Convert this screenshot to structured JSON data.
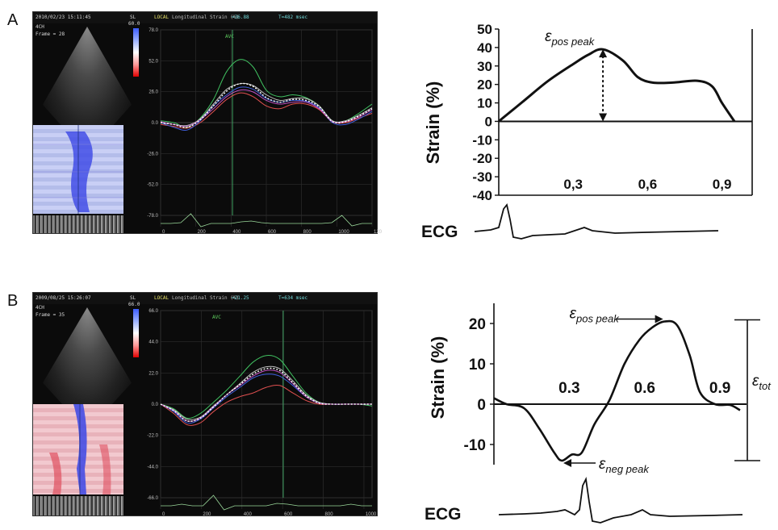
{
  "panels": [
    {
      "letter": "A",
      "echo": {
        "timestamp": "2010/02/23 15:11:45",
        "view": "4CH",
        "frame": "Frame = 28",
        "scale_label": "SL",
        "scale_value": "60.0",
        "header_local": "LOCAL",
        "header_title": "Longitudinal Strain (%)",
        "header_value": "=36.88",
        "header_time": "T=482 msec",
        "marker": "AVC",
        "yticks": [
          "78.0",
          "52.0",
          "26.0",
          "0.0",
          "-26.0",
          "-52.0",
          "-78.0"
        ],
        "xticks": [
          "0",
          "200",
          "400",
          "600",
          "800",
          "1000",
          "120"
        ]
      },
      "schematic": {
        "ylabel": "Strain (%)",
        "yticks": [
          "50",
          "40",
          "30",
          "20",
          "10",
          "0",
          "-10",
          "-20",
          "-30",
          "-40"
        ],
        "xticks": [
          "0,3",
          "0,6",
          "0,9"
        ],
        "peak_label": "pos peak",
        "ecg_label": "ECG"
      }
    },
    {
      "letter": "B",
      "echo": {
        "timestamp": "2009/08/25 15:26:07",
        "view": "4CH",
        "frame": "Frame = 35",
        "scale_label": "SL",
        "scale_value": "66.0",
        "header_local": "LOCAL",
        "header_title": "Longitudinal Strain (%)",
        "header_value": "=21.25",
        "header_time": "T=634 msec",
        "marker": "AVC",
        "yticks": [
          "66.0",
          "44.0",
          "22.0",
          "0.0",
          "-22.0",
          "-44.0",
          "-66.0"
        ],
        "xticks": [
          "0",
          "200",
          "400",
          "600",
          "800",
          "1000"
        ]
      },
      "schematic": {
        "ylabel": "Strain (%)",
        "yticks": [
          "20",
          "10",
          "0",
          "-10"
        ],
        "xticks": [
          "0.3",
          "0.6",
          "0.9"
        ],
        "pos_label": "pos peak",
        "neg_label": "neg peak",
        "tot_label": "tot",
        "ecg_label": "ECG"
      }
    }
  ],
  "chart_data": [
    {
      "type": "line",
      "panel": "A",
      "ylabel": "Strain (%)",
      "xlabel": "",
      "ylim": [
        -40,
        50
      ],
      "xticks": [
        0.3,
        0.6,
        0.9
      ],
      "series": [
        {
          "x": [
            0.0,
            0.1,
            0.2,
            0.3,
            0.36,
            0.42,
            0.5,
            0.56,
            0.62,
            0.7,
            0.8,
            0.86,
            0.9,
            0.95
          ],
          "y": [
            0,
            11,
            22,
            31,
            36,
            39,
            33,
            24,
            21,
            21,
            22,
            19,
            10,
            0
          ]
        }
      ],
      "annotations": [
        {
          "text": "pos peak",
          "x": 0.42,
          "y": 39
        }
      ]
    },
    {
      "type": "line",
      "panel": "B",
      "ylabel": "Strain (%)",
      "xlabel": "",
      "ylim": [
        -15,
        25
      ],
      "xticks": [
        0.3,
        0.6,
        0.9
      ],
      "series": [
        {
          "x": [
            0.0,
            0.05,
            0.12,
            0.18,
            0.24,
            0.27,
            0.31,
            0.35,
            0.4,
            0.46,
            0.52,
            0.58,
            0.63,
            0.68,
            0.73,
            0.78,
            0.82,
            0.88,
            0.94,
            0.98
          ],
          "y": [
            1.5,
            0,
            -1,
            -6,
            -12,
            -14,
            -12.5,
            -12,
            -5,
            1,
            10,
            16,
            19,
            20.5,
            19.5,
            12,
            3,
            0,
            -0.2,
            -1.5
          ]
        }
      ],
      "annotations": [
        {
          "text": "pos peak",
          "x": 0.68,
          "y": 20.5
        },
        {
          "text": "neg peak",
          "x": 0.27,
          "y": -14
        },
        {
          "text": "tot",
          "range": [
            -14,
            20.5
          ]
        }
      ]
    }
  ]
}
